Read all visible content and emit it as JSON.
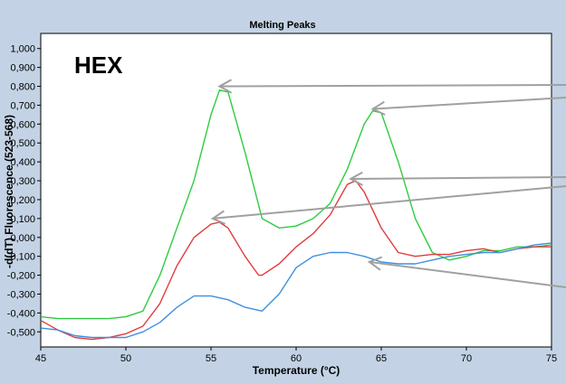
{
  "chart_data": {
    "type": "line",
    "title": "Melting Peaks",
    "panel_label": "HEX",
    "xlabel": "Temperature (°C)",
    "ylabel": "-d(dT) Fluorescence (523-568)",
    "xlim": [
      45,
      75
    ],
    "ylim": [
      -0.58,
      1.08
    ],
    "x_ticks": [
      45,
      50,
      55,
      60,
      65,
      70,
      75
    ],
    "y_ticks": [
      -0.5,
      -0.4,
      -0.3,
      -0.2,
      -0.1,
      0.0,
      0.1,
      0.2,
      0.3,
      0.4,
      0.5,
      0.6,
      0.7,
      0.8,
      0.9,
      1.0
    ],
    "y_tick_labels": [
      "-0,500",
      "-0,400",
      "-0,300",
      "-0,200",
      "-0,100",
      "0,000",
      "0,100",
      "0,200",
      "0,300",
      "0,400",
      "0,500",
      "0,600",
      "0,700",
      "0,800",
      "0,900",
      "1,000"
    ],
    "grid": false,
    "series": [
      {
        "color": "#2ecc40",
        "points": [
          [
            45,
            -0.42
          ],
          [
            46,
            -0.43
          ],
          [
            47,
            -0.43
          ],
          [
            48,
            -0.43
          ],
          [
            49,
            -0.43
          ],
          [
            50,
            -0.42
          ],
          [
            51,
            -0.39
          ],
          [
            52,
            -0.2
          ],
          [
            53,
            0.05
          ],
          [
            54,
            0.3
          ],
          [
            55,
            0.65
          ],
          [
            55.5,
            0.78
          ],
          [
            56,
            0.77
          ],
          [
            57,
            0.45
          ],
          [
            58,
            0.1
          ],
          [
            59,
            0.05
          ],
          [
            60,
            0.06
          ],
          [
            61,
            0.1
          ],
          [
            62,
            0.18
          ],
          [
            63,
            0.36
          ],
          [
            64,
            0.6
          ],
          [
            64.5,
            0.67
          ],
          [
            65,
            0.66
          ],
          [
            66,
            0.4
          ],
          [
            67,
            0.1
          ],
          [
            68,
            -0.08
          ],
          [
            69,
            -0.12
          ],
          [
            70,
            -0.1
          ],
          [
            71,
            -0.07
          ],
          [
            72,
            -0.07
          ],
          [
            73,
            -0.05
          ],
          [
            74,
            -0.05
          ],
          [
            75,
            -0.04
          ]
        ]
      },
      {
        "color": "#e23b3b",
        "points": [
          [
            45,
            -0.44
          ],
          [
            46,
            -0.49
          ],
          [
            47,
            -0.53
          ],
          [
            48,
            -0.54
          ],
          [
            49,
            -0.53
          ],
          [
            50,
            -0.51
          ],
          [
            51,
            -0.47
          ],
          [
            52,
            -0.35
          ],
          [
            53,
            -0.15
          ],
          [
            54,
            0.0
          ],
          [
            55,
            0.07
          ],
          [
            55.5,
            0.08
          ],
          [
            56,
            0.05
          ],
          [
            57,
            -0.1
          ],
          [
            57.8,
            -0.2
          ],
          [
            58,
            -0.2
          ],
          [
            59,
            -0.14
          ],
          [
            60,
            -0.05
          ],
          [
            61,
            0.02
          ],
          [
            62,
            0.12
          ],
          [
            63,
            0.28
          ],
          [
            63.5,
            0.3
          ],
          [
            64,
            0.24
          ],
          [
            65,
            0.05
          ],
          [
            66,
            -0.08
          ],
          [
            67,
            -0.1
          ],
          [
            68,
            -0.09
          ],
          [
            69,
            -0.09
          ],
          [
            70,
            -0.07
          ],
          [
            71,
            -0.06
          ],
          [
            72,
            -0.08
          ],
          [
            73,
            -0.06
          ],
          [
            74,
            -0.05
          ],
          [
            75,
            -0.05
          ]
        ]
      },
      {
        "color": "#3f8fe0",
        "points": [
          [
            45,
            -0.48
          ],
          [
            46,
            -0.49
          ],
          [
            47,
            -0.52
          ],
          [
            48,
            -0.53
          ],
          [
            49,
            -0.53
          ],
          [
            50,
            -0.53
          ],
          [
            51,
            -0.5
          ],
          [
            52,
            -0.45
          ],
          [
            53,
            -0.37
          ],
          [
            54,
            -0.31
          ],
          [
            55,
            -0.31
          ],
          [
            56,
            -0.33
          ],
          [
            57,
            -0.37
          ],
          [
            58,
            -0.39
          ],
          [
            59,
            -0.3
          ],
          [
            60,
            -0.16
          ],
          [
            61,
            -0.1
          ],
          [
            62,
            -0.08
          ],
          [
            63,
            -0.08
          ],
          [
            64,
            -0.1
          ],
          [
            65,
            -0.13
          ],
          [
            66,
            -0.14
          ],
          [
            67,
            -0.14
          ],
          [
            68,
            -0.12
          ],
          [
            69,
            -0.1
          ],
          [
            70,
            -0.09
          ],
          [
            71,
            -0.08
          ],
          [
            72,
            -0.08
          ],
          [
            73,
            -0.06
          ],
          [
            74,
            -0.04
          ],
          [
            75,
            -0.03
          ]
        ]
      }
    ],
    "arrows": [
      {
        "to": [
          55.5,
          0.8
        ]
      },
      {
        "to": [
          64.5,
          0.68
        ]
      },
      {
        "to": [
          63.2,
          0.31
        ]
      },
      {
        "to": [
          55.1,
          0.1
        ]
      },
      {
        "to": [
          64.3,
          -0.13
        ]
      }
    ]
  },
  "colors": {
    "background": "#c3d3e5",
    "plot_background": "#ffffff",
    "arrow": "#a0a0a0"
  }
}
